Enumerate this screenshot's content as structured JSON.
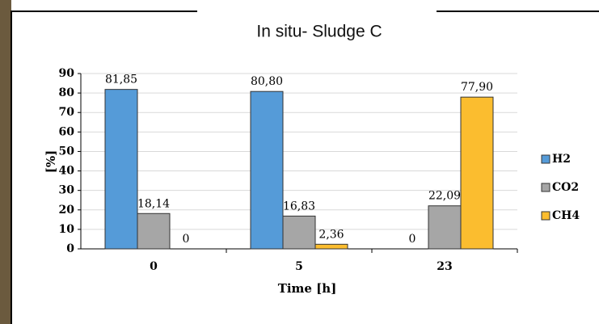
{
  "chart_data": {
    "type": "bar",
    "title": "In situ-  Sludge C",
    "x_label": "Time [h]",
    "y_label": "[%]",
    "categories": [
      "0",
      "5",
      "23"
    ],
    "series": [
      {
        "name": "H2",
        "color": "#559bd8",
        "values": [
          81.85,
          80.8,
          0
        ],
        "value_labels": [
          "81,85",
          "80,80",
          "0"
        ]
      },
      {
        "name": "CO2",
        "color": "#a6a6a6",
        "values": [
          18.14,
          16.83,
          22.09
        ],
        "value_labels": [
          "18,14",
          "16,83",
          "22,09"
        ]
      },
      {
        "name": "CH4",
        "color": "#fbbd2f",
        "values": [
          0,
          2.36,
          77.9
        ],
        "value_labels": [
          "0",
          "2,36",
          "77,90"
        ]
      }
    ],
    "ylim": [
      0,
      90
    ],
    "yticks": [
      0,
      10,
      20,
      30,
      40,
      50,
      60,
      70,
      80,
      90
    ],
    "grid": true
  }
}
